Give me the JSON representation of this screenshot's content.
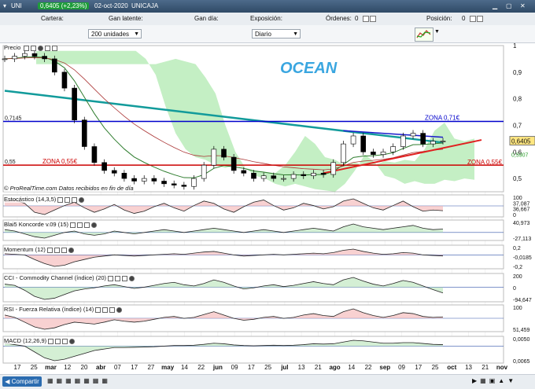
{
  "titlebar": {
    "symbol": "UNI",
    "price": "0,6405 (+2,23%)",
    "date": "02-oct-2020",
    "name": "UNICAJA"
  },
  "topbar": {
    "cartera": "Cartera:",
    "ganancia_latente": "Gan latente:",
    "ganancia_dia": "Gan día:",
    "exposicion": "Exposición:",
    "ordenes": "Órdenes:",
    "ordenes_val": "0",
    "posicion": "Posición:",
    "posicion_val": "0"
  },
  "controls": {
    "units": "200 unidades",
    "period": "Diario"
  },
  "colors": {
    "accent": "#2b6cb0",
    "price_up": "#ffffff",
    "price_down": "#000000",
    "zone_blue": "#0000cc",
    "zone_red": "#cc0000",
    "cloud_green": "#7ddc7d",
    "cloud_cyan": "#8fe6f0",
    "ma_teal": "#129b9b"
  },
  "chart_data": {
    "type": "line",
    "watermark": "OCEAN",
    "title": "Precio",
    "source": "© ProRealTime.com",
    "source_note": "Datos recibidos en fin de día",
    "x_ticks": [
      "17",
      "25",
      "mar",
      "12",
      "20",
      "abr",
      "07",
      "17",
      "27",
      "may",
      "14",
      "22",
      "jun",
      "09",
      "17",
      "25",
      "jul",
      "13",
      "21",
      "ago",
      "14",
      "22",
      "sep",
      "09",
      "17",
      "25",
      "oct",
      "13",
      "21",
      "nov"
    ],
    "y_ticks": [
      "1",
      "0,9",
      "0,8",
      "0,7",
      "0,6",
      "0,5"
    ],
    "ylim": [
      0.45,
      1.0
    ],
    "price_tag": "0,6405",
    "axis_labels_right": [
      "0,6405",
      "0,5907"
    ],
    "levels": [
      {
        "name": "ZONA 0,71€",
        "value": 0.7145,
        "label_left": "0,7145",
        "color": "#0000cc"
      },
      {
        "name": "ZONA 0,55€",
        "value": 0.55,
        "label_left": "0,55",
        "color": "#cc0000"
      }
    ],
    "series": [
      {
        "values": [
          0.95,
          0.96,
          0.97,
          0.96,
          0.95,
          0.9,
          0.84,
          0.72,
          0.62,
          0.56,
          0.53,
          0.52,
          0.5,
          0.49,
          0.5,
          0.49,
          0.48,
          0.475,
          0.47,
          0.5,
          0.55,
          0.61,
          0.58,
          0.53,
          0.52,
          0.5,
          0.51,
          0.5,
          0.5,
          0.515,
          0.51,
          0.52,
          0.515,
          0.56,
          0.63,
          0.66,
          0.6,
          0.59,
          0.6,
          0.62,
          0.66,
          0.67,
          0.63,
          0.64,
          0.6405
        ]
      }
    ],
    "indicators": [
      {
        "label": "Estocástico (14,3,5)",
        "readouts": [
          "100",
          "37,087",
          "36,667",
          "0"
        ],
        "values": [
          80,
          85,
          70,
          30,
          20,
          40,
          60,
          75,
          50,
          30,
          45,
          65,
          40,
          25,
          35,
          55,
          70,
          50,
          35,
          60,
          80,
          70,
          45,
          30,
          55,
          75,
          85,
          60,
          40,
          50,
          70,
          60,
          45,
          55,
          80,
          90,
          70,
          50,
          40,
          60,
          80,
          55,
          35,
          40,
          37
        ]
      },
      {
        "label": "Blai5 Koncorde v.09 (15)",
        "readouts": [
          "40,973",
          "-27,113"
        ],
        "values": [
          10,
          5,
          -5,
          -15,
          -20,
          -10,
          0,
          5,
          -5,
          -10,
          -5,
          5,
          0,
          -5,
          0,
          5,
          10,
          5,
          0,
          5,
          10,
          15,
          10,
          5,
          0,
          5,
          10,
          5,
          0,
          5,
          10,
          15,
          10,
          5,
          20,
          30,
          20,
          15,
          10,
          15,
          20,
          25,
          15,
          10,
          12
        ]
      },
      {
        "label": "Momentum (12)",
        "readouts": [
          "0,2",
          "-0,0185",
          "-0,2"
        ],
        "values": [
          0.02,
          0.01,
          0.0,
          -0.08,
          -0.15,
          -0.2,
          -0.18,
          -0.12,
          -0.08,
          -0.04,
          -0.02,
          0.0,
          -0.01,
          -0.02,
          -0.01,
          0.0,
          0.01,
          0.02,
          0.01,
          0.03,
          0.05,
          0.06,
          0.03,
          0.0,
          -0.02,
          -0.01,
          0.0,
          0.01,
          0.0,
          0.01,
          0.02,
          0.03,
          0.02,
          0.04,
          0.08,
          0.1,
          0.06,
          0.03,
          0.01,
          0.02,
          0.04,
          0.03,
          0.0,
          -0.01,
          -0.0185
        ]
      },
      {
        "label": "CCI - Commodity Channel (índice) (20)",
        "readouts": [
          "200",
          "0",
          "-94,647"
        ],
        "values": [
          50,
          30,
          -50,
          -150,
          -200,
          -180,
          -120,
          -60,
          -30,
          -10,
          20,
          40,
          10,
          -20,
          0,
          30,
          60,
          80,
          40,
          20,
          60,
          120,
          80,
          20,
          -30,
          -10,
          20,
          40,
          10,
          30,
          60,
          90,
          60,
          40,
          120,
          160,
          100,
          50,
          20,
          60,
          110,
          80,
          20,
          -40,
          -94
        ]
      },
      {
        "label": "RSI - Fuerza Relativa (índice) (14)",
        "readouts": [
          "100",
          "51,459"
        ],
        "values": [
          55,
          50,
          40,
          30,
          25,
          28,
          35,
          40,
          38,
          36,
          40,
          45,
          42,
          40,
          42,
          46,
          50,
          52,
          48,
          50,
          56,
          62,
          55,
          48,
          44,
          46,
          50,
          52,
          48,
          50,
          55,
          58,
          54,
          52,
          62,
          68,
          60,
          54,
          50,
          54,
          60,
          58,
          52,
          50,
          51
        ]
      },
      {
        "label": "MACD (12,26,9)",
        "readouts": [
          "0,0050",
          "0,0065"
        ],
        "values": [
          0.01,
          0.005,
          0.0,
          -0.02,
          -0.04,
          -0.05,
          -0.045,
          -0.035,
          -0.025,
          -0.015,
          -0.01,
          -0.005,
          -0.005,
          -0.004,
          -0.003,
          -0.002,
          0.0,
          0.002,
          0.002,
          0.003,
          0.006,
          0.01,
          0.008,
          0.004,
          0.002,
          0.001,
          0.002,
          0.003,
          0.002,
          0.003,
          0.005,
          0.008,
          0.007,
          0.008,
          0.014,
          0.02,
          0.018,
          0.014,
          0.01,
          0.01,
          0.012,
          0.012,
          0.009,
          0.006,
          0.005
        ]
      }
    ]
  },
  "bottombar": {
    "share": "Compartir"
  }
}
